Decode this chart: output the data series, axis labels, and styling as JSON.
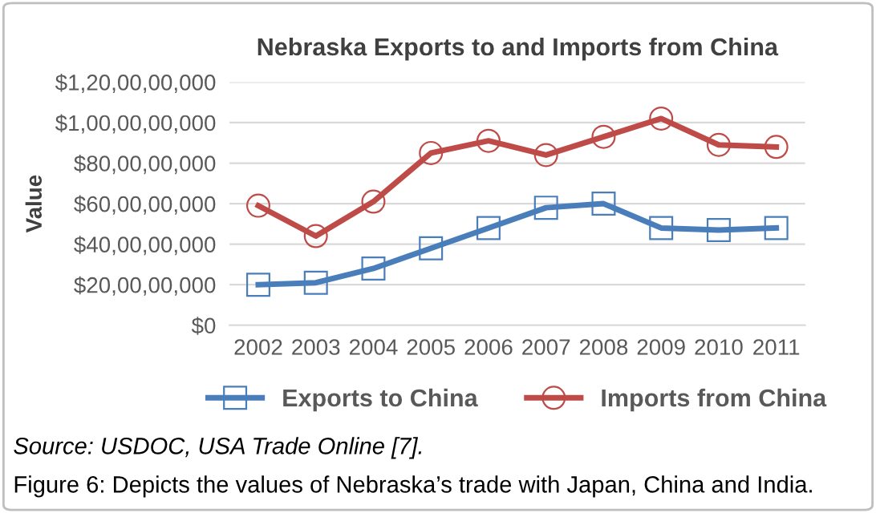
{
  "chart_data": {
    "type": "line",
    "title": "Nebraska Exports to and Imports from China",
    "ylabel": "Value",
    "categories": [
      "2002",
      "2003",
      "2004",
      "2005",
      "2006",
      "2007",
      "2008",
      "2009",
      "2010",
      "2011"
    ],
    "series": [
      {
        "name": "Exports to China",
        "color": "#4a7ebb",
        "marker": "square",
        "values": [
          200000000,
          210000000,
          280000000,
          380000000,
          480000000,
          580000000,
          600000000,
          480000000,
          470000000,
          480000000
        ]
      },
      {
        "name": "Imports from China",
        "color": "#be4b48",
        "marker": "circle",
        "values": [
          590000000,
          440000000,
          610000000,
          850000000,
          910000000,
          840000000,
          930000000,
          1020000000,
          890000000,
          880000000
        ]
      }
    ],
    "ylim": [
      0,
      1200000000
    ],
    "yticks": [
      {
        "value": 0,
        "label": "$0"
      },
      {
        "value": 200000000,
        "label": "$20,00,00,000"
      },
      {
        "value": 400000000,
        "label": "$40,00,00,000"
      },
      {
        "value": 600000000,
        "label": "$60,00,00,000"
      },
      {
        "value": 800000000,
        "label": "$80,00,00,000"
      },
      {
        "value": 1000000000,
        "label": "$1,00,00,00,000"
      },
      {
        "value": 1200000000,
        "label": "$1,20,00,00,000"
      }
    ],
    "grid": "y",
    "legend": "bottom",
    "line_style": "solid",
    "annotations": [
      "Source: USDOC, USA Trade Online [7].",
      "Figure 6: Depicts the values of Nebraska’s trade with Japan, China and India."
    ]
  }
}
